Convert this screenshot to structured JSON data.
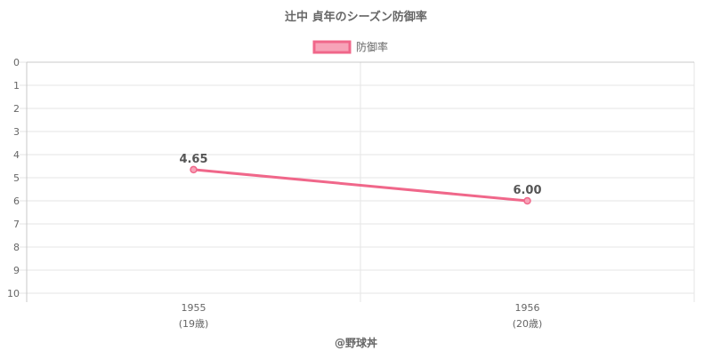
{
  "chart_data": {
    "type": "line",
    "title": "辻中 貞年のシーズン防御率",
    "categories": [
      "1955",
      "1956"
    ],
    "category_sublabels": [
      "(19歳)",
      "(20歳)"
    ],
    "series": [
      {
        "name": "防御率",
        "values": [
          4.65,
          6.0
        ],
        "labels": [
          "4.65",
          "6.00"
        ],
        "color": "#f0678a",
        "fill": "#f7a3b8"
      }
    ],
    "ylim": [
      0,
      10
    ],
    "y_reversed": true,
    "y_ticks": [
      "0",
      "1",
      "2",
      "3",
      "4",
      "5",
      "6",
      "7",
      "8",
      "9",
      "10"
    ],
    "grid": true,
    "legend": "top-center",
    "credit": "@野球丼"
  }
}
